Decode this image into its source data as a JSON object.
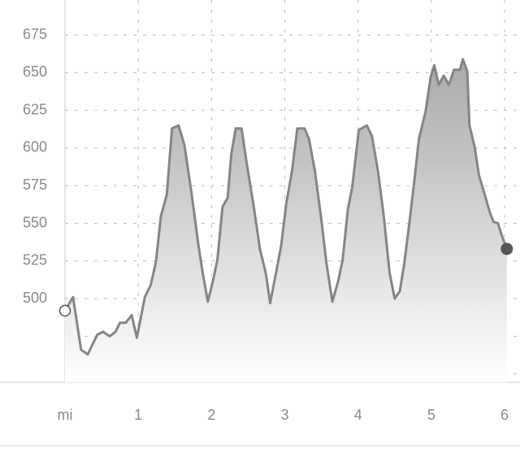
{
  "chart_data": {
    "type": "area",
    "color": "#858585",
    "grid": true,
    "xlim": [
      0,
      6.21
    ],
    "ylim": [
      444.4,
      698.3
    ],
    "xticks": [
      {
        "value": 0,
        "label": "mi"
      },
      1,
      2,
      3,
      4,
      5,
      6
    ],
    "yticks": [
      {
        "value": 450,
        "label": null
      },
      {
        "value": 475,
        "label": null
      },
      500,
      525,
      550,
      575,
      600,
      625,
      650,
      675
    ],
    "x": [
      0,
      0.11,
      0.22,
      0.31,
      0.44,
      0.52,
      0.61,
      0.69,
      0.75,
      0.83,
      0.91,
      0.98,
      1.09,
      1.17,
      1.24,
      1.31,
      1.39,
      1.46,
      1.55,
      1.63,
      1.73,
      1.82,
      1.88,
      1.95,
      2.02,
      2.08,
      2.15,
      2.22,
      2.27,
      2.33,
      2.41,
      2.48,
      2.57,
      2.66,
      2.74,
      2.8,
      2.88,
      2.95,
      3.02,
      3.1,
      3.17,
      3.27,
      3.33,
      3.41,
      3.5,
      3.57,
      3.65,
      3.73,
      3.79,
      3.86,
      3.92,
      4.01,
      4.12,
      4.19,
      4.27,
      4.35,
      4.43,
      4.5,
      4.57,
      4.63,
      4.7,
      4.77,
      4.83,
      4.92,
      4.99,
      5.04,
      5.1,
      5.17,
      5.24,
      5.31,
      5.39,
      5.43,
      5.49,
      5.52,
      5.59,
      5.65,
      5.73,
      5.8,
      5.85,
      5.91,
      5.96,
      6.03
    ],
    "values": [
      492,
      501,
      466,
      463,
      476,
      478,
      475,
      478,
      484,
      484,
      489,
      474,
      501,
      509,
      524,
      555,
      569,
      613,
      615,
      602,
      569,
      536,
      517,
      498,
      512,
      526,
      561,
      567,
      596,
      613,
      613,
      590,
      563,
      533,
      517,
      497,
      517,
      535,
      563,
      585,
      613,
      613,
      606,
      585,
      552,
      523,
      498,
      512,
      526,
      559,
      574,
      612,
      615,
      608,
      585,
      555,
      517,
      500,
      505,
      523,
      550,
      579,
      606,
      624,
      647,
      655,
      642,
      648,
      642,
      652,
      652,
      659,
      651,
      615,
      601,
      582,
      569,
      557,
      551,
      550,
      542,
      533
    ]
  }
}
